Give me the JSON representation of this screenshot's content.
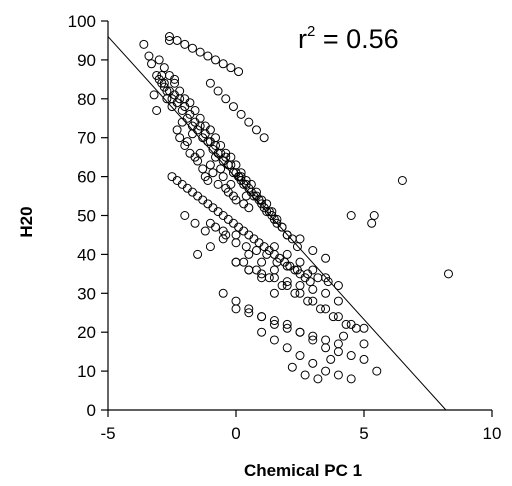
{
  "chart_data": {
    "type": "scatter",
    "title": "",
    "xlabel": "Chemical PC 1",
    "ylabel": "H20",
    "xlim": [
      -5,
      10
    ],
    "ylim": [
      0,
      100
    ],
    "x_ticks": [
      -5,
      0,
      5,
      10
    ],
    "y_ticks": [
      0,
      10,
      20,
      30,
      40,
      50,
      60,
      70,
      80,
      90,
      100
    ],
    "grid": false,
    "legend": "none",
    "annotation": {
      "base": "r",
      "sup": "2",
      "rest": " = 0.56"
    },
    "regression_line": {
      "x": [
        -5,
        8.2
      ],
      "y": [
        96,
        0
      ]
    },
    "marker": "open-circle",
    "color": "#000000",
    "series": [
      {
        "x": [
          -3.6,
          -3.4,
          -3.2,
          -3.1,
          -3.0,
          -2.9,
          -2.8,
          -2.7,
          -2.6,
          -2.5,
          -2.4,
          -2.3,
          -2.2,
          -2.1,
          -2.0,
          -1.9,
          -1.8,
          -1.7,
          -1.6,
          -1.5,
          -1.4,
          -1.3,
          -1.2,
          -1.1,
          -1.0,
          -0.9,
          -0.8,
          -0.7,
          -0.6,
          -0.5,
          -0.4,
          -0.3,
          -0.2,
          -0.1,
          0.0,
          0.1,
          0.2,
          0.3,
          0.4,
          0.5,
          -3.3,
          -3.1,
          -2.9,
          -2.7,
          -2.5,
          -2.3,
          -2.1,
          -1.9,
          -1.7,
          -1.5,
          -1.3,
          -1.1,
          -0.9,
          -0.7,
          -0.5,
          -0.3,
          -0.1,
          0.1,
          0.3,
          0.5,
          0.7,
          0.9,
          1.1,
          1.3,
          1.5,
          -3.0,
          -2.8,
          -2.6,
          -2.4,
          -2.2,
          -2.0,
          -1.8,
          -1.6,
          -1.4,
          -1.2,
          -1.0,
          -0.8,
          -0.6,
          -0.4,
          -0.2,
          0.0,
          0.2,
          0.4,
          0.6,
          0.8,
          1.0,
          1.2,
          1.4,
          1.6,
          1.8,
          2.0,
          -2.8,
          -2.6,
          -2.4,
          -2.2,
          -2.0,
          -1.8,
          -1.6,
          -1.4,
          -1.2,
          -1.0,
          -0.8,
          -0.6,
          -0.4,
          -0.2,
          0.0,
          0.2,
          0.4,
          0.6,
          0.8,
          1.0,
          1.2,
          1.4,
          1.6,
          1.8,
          2.0,
          2.2,
          2.4,
          -2.5,
          -2.3,
          -2.1,
          -1.9,
          -1.7,
          -1.5,
          -1.3,
          -1.1,
          -0.9,
          -0.7,
          -0.5,
          -0.3,
          -0.1,
          0.1,
          0.3,
          0.5,
          0.7,
          0.9,
          1.1,
          1.3,
          1.5,
          1.7,
          1.9,
          2.1,
          2.3,
          2.5,
          2.7,
          2.9,
          -2.0,
          -1.6,
          -1.2,
          -0.8,
          -0.4,
          0.0,
          0.4,
          0.8,
          1.2,
          1.6,
          2.0,
          2.4,
          2.8,
          3.2,
          3.6,
          -1.5,
          -1.0,
          -0.5,
          0.0,
          0.5,
          1.0,
          1.5,
          2.0,
          2.5,
          3.0,
          3.5,
          4.0,
          -1.0,
          -0.5,
          0.0,
          0.5,
          1.0,
          1.5,
          2.0,
          2.5,
          3.0,
          3.5,
          4.0,
          4.5,
          -0.5,
          0.0,
          0.5,
          1.0,
          1.5,
          2.0,
          2.5,
          3.0,
          3.5,
          4.0,
          0.0,
          0.5,
          1.0,
          1.5,
          2.0,
          2.5,
          3.0,
          3.5,
          4.0,
          4.5,
          5.0,
          0.3,
          0.8,
          1.3,
          1.8,
          2.3,
          2.8,
          3.3,
          3.8,
          4.3,
          1.0,
          1.5,
          2.0,
          2.5,
          3.0,
          3.5,
          4.0,
          4.5,
          5.0,
          5.5,
          1.5,
          2.0,
          2.5,
          3.0,
          3.5,
          4.0,
          2.2,
          2.7,
          3.2,
          3.7,
          4.2,
          4.7,
          2.5,
          3.0,
          3.5,
          -2.6,
          -2.3,
          -2.0,
          -1.7,
          -1.4,
          -1.1,
          -0.8,
          -0.5,
          -0.2,
          0.1,
          -1.0,
          -0.7,
          -0.4,
          -0.1,
          0.2,
          0.5,
          0.8,
          1.1,
          0.0,
          0.5,
          1.0,
          1.5,
          6.5,
          8.3,
          5.3,
          5.4,
          4.5,
          5.0
        ],
        "y": [
          94,
          91,
          81,
          77,
          90,
          86,
          83,
          80,
          95,
          78,
          85,
          72,
          70,
          74,
          68,
          69,
          66,
          71,
          65,
          64,
          66,
          62,
          60,
          59,
          63,
          61,
          65,
          58,
          62,
          60,
          57,
          56,
          58,
          55,
          54,
          60,
          59,
          53,
          55,
          52,
          89,
          86,
          84,
          82,
          80,
          79,
          77,
          75,
          73,
          72,
          70,
          69,
          67,
          66,
          64,
          63,
          61,
          60,
          58,
          57,
          55,
          54,
          52,
          51,
          49,
          85,
          84,
          82,
          81,
          80,
          78,
          76,
          74,
          73,
          71,
          69,
          68,
          66,
          65,
          63,
          61,
          60,
          58,
          56,
          55,
          53,
          51,
          50,
          48,
          47,
          45,
          88,
          86,
          84,
          82,
          80,
          79,
          77,
          75,
          73,
          72,
          70,
          68,
          66,
          65,
          63,
          61,
          59,
          58,
          56,
          54,
          53,
          51,
          49,
          47,
          45,
          44,
          42,
          60,
          59,
          58,
          57,
          56,
          55,
          54,
          53,
          52,
          51,
          50,
          49,
          48,
          47,
          46,
          45,
          44,
          43,
          42,
          41,
          40,
          39,
          38,
          37,
          36,
          35,
          34,
          33,
          50,
          48,
          46,
          47,
          45,
          43,
          42,
          41,
          40,
          38,
          37,
          36,
          35,
          34,
          33,
          40,
          42,
          44,
          38,
          36,
          35,
          34,
          33,
          32,
          31,
          30,
          28,
          48,
          46,
          45,
          40,
          38,
          36,
          32,
          30,
          28,
          26,
          24,
          22,
          30,
          28,
          26,
          24,
          22,
          21,
          20,
          19,
          18,
          17,
          26,
          25,
          24,
          23,
          22,
          20,
          18,
          16,
          15,
          14,
          13,
          38,
          36,
          34,
          32,
          30,
          28,
          26,
          24,
          22,
          20,
          18,
          16,
          14,
          12,
          10,
          9,
          8,
          17,
          10,
          42,
          40,
          38,
          36,
          34,
          32,
          11,
          9,
          8,
          13,
          19,
          21,
          44,
          41,
          39,
          96,
          95,
          94,
          93,
          92,
          91,
          90,
          89,
          88,
          87,
          84,
          82,
          80,
          78,
          76,
          74,
          72,
          70,
          38,
          36,
          34,
          30,
          59,
          35,
          48,
          50,
          50,
          21
        ]
      }
    ]
  }
}
